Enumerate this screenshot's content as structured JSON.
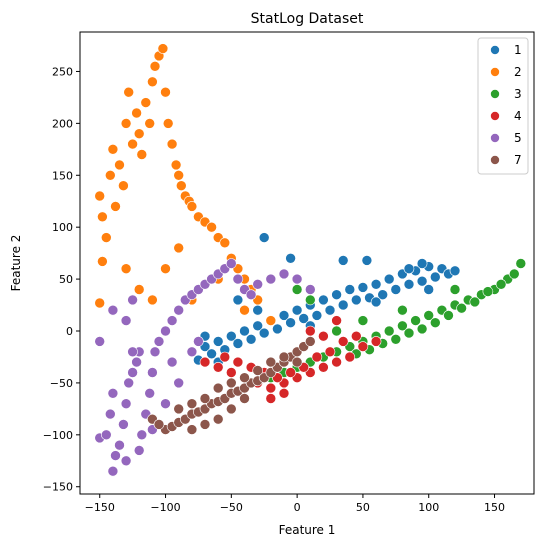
{
  "chart_data": {
    "type": "scatter",
    "title": "StatLog Dataset",
    "xlabel": "Feature 1",
    "ylabel": "Feature 2",
    "xlim": [
      -165,
      180
    ],
    "ylim": [
      -157,
      288
    ],
    "xticks": [
      -150,
      -100,
      -50,
      0,
      50,
      100,
      150
    ],
    "yticks": [
      -150,
      -100,
      -50,
      0,
      50,
      100,
      150,
      200,
      250
    ],
    "grid": false,
    "legend_position": "top-right",
    "series": [
      {
        "name": "1",
        "color": "#1f77b4",
        "points": [
          [
            -80,
            -20
          ],
          [
            -75,
            -28
          ],
          [
            -70,
            -15
          ],
          [
            -65,
            -22
          ],
          [
            -60,
            -10
          ],
          [
            -55,
            -18
          ],
          [
            -50,
            -5
          ],
          [
            -45,
            -12
          ],
          [
            -40,
            0
          ],
          [
            -35,
            -8
          ],
          [
            -30,
            5
          ],
          [
            -25,
            -2
          ],
          [
            -20,
            10
          ],
          [
            -15,
            2
          ],
          [
            -10,
            15
          ],
          [
            -5,
            8
          ],
          [
            0,
            20
          ],
          [
            5,
            12
          ],
          [
            10,
            25
          ],
          [
            15,
            15
          ],
          [
            20,
            30
          ],
          [
            25,
            20
          ],
          [
            30,
            35
          ],
          [
            35,
            25
          ],
          [
            40,
            40
          ],
          [
            45,
            30
          ],
          [
            50,
            42
          ],
          [
            55,
            32
          ],
          [
            60,
            45
          ],
          [
            65,
            35
          ],
          [
            70,
            50
          ],
          [
            75,
            40
          ],
          [
            80,
            55
          ],
          [
            85,
            45
          ],
          [
            90,
            58
          ],
          [
            95,
            48
          ],
          [
            100,
            62
          ],
          [
            105,
            52
          ],
          [
            110,
            60
          ],
          [
            115,
            55
          ],
          [
            120,
            58
          ],
          [
            85,
            60
          ],
          [
            95,
            65
          ],
          [
            -25,
            90
          ],
          [
            -5,
            70
          ],
          [
            35,
            68
          ],
          [
            53,
            68
          ],
          [
            -45,
            30
          ],
          [
            -30,
            20
          ],
          [
            10,
            5
          ],
          [
            -60,
            -30
          ],
          [
            -70,
            -5
          ],
          [
            60,
            28
          ],
          [
            100,
            40
          ]
        ]
      },
      {
        "name": "2",
        "color": "#ff7f0e",
        "points": [
          [
            -150,
            130
          ],
          [
            -148,
            110
          ],
          [
            -145,
            90
          ],
          [
            -142,
            150
          ],
          [
            -140,
            175
          ],
          [
            -138,
            120
          ],
          [
            -135,
            160
          ],
          [
            -132,
            140
          ],
          [
            -130,
            200
          ],
          [
            -128,
            230
          ],
          [
            -125,
            180
          ],
          [
            -122,
            210
          ],
          [
            -120,
            190
          ],
          [
            -118,
            170
          ],
          [
            -115,
            220
          ],
          [
            -112,
            200
          ],
          [
            -110,
            240
          ],
          [
            -108,
            255
          ],
          [
            -105,
            265
          ],
          [
            -102,
            272
          ],
          [
            -100,
            230
          ],
          [
            -98,
            200
          ],
          [
            -95,
            180
          ],
          [
            -92,
            160
          ],
          [
            -90,
            150
          ],
          [
            -88,
            140
          ],
          [
            -85,
            130
          ],
          [
            -82,
            125
          ],
          [
            -80,
            120
          ],
          [
            -75,
            110
          ],
          [
            -70,
            105
          ],
          [
            -65,
            100
          ],
          [
            -60,
            90
          ],
          [
            -55,
            85
          ],
          [
            -50,
            70
          ],
          [
            -45,
            60
          ],
          [
            -40,
            50
          ],
          [
            -35,
            40
          ],
          [
            -30,
            30
          ],
          [
            -150,
            27
          ],
          [
            -148,
            67
          ],
          [
            -130,
            60
          ],
          [
            -120,
            40
          ],
          [
            -110,
            30
          ],
          [
            -100,
            60
          ],
          [
            -90,
            80
          ],
          [
            -80,
            30
          ],
          [
            -60,
            50
          ],
          [
            -40,
            20
          ],
          [
            -20,
            10
          ]
        ]
      },
      {
        "name": "3",
        "color": "#2ca02c",
        "points": [
          [
            -40,
            -55
          ],
          [
            -30,
            -50
          ],
          [
            -20,
            -45
          ],
          [
            -10,
            -40
          ],
          [
            0,
            -35
          ],
          [
            10,
            -30
          ],
          [
            20,
            -25
          ],
          [
            30,
            -20
          ],
          [
            40,
            -15
          ],
          [
            50,
            -10
          ],
          [
            60,
            -5
          ],
          [
            70,
            0
          ],
          [
            80,
            5
          ],
          [
            90,
            10
          ],
          [
            100,
            15
          ],
          [
            110,
            20
          ],
          [
            120,
            25
          ],
          [
            130,
            30
          ],
          [
            140,
            35
          ],
          [
            150,
            40
          ],
          [
            160,
            50
          ],
          [
            170,
            65
          ],
          [
            165,
            55
          ],
          [
            155,
            45
          ],
          [
            145,
            38
          ],
          [
            135,
            28
          ],
          [
            125,
            22
          ],
          [
            115,
            15
          ],
          [
            105,
            8
          ],
          [
            95,
            2
          ],
          [
            85,
            -2
          ],
          [
            75,
            -8
          ],
          [
            65,
            -12
          ],
          [
            55,
            -18
          ],
          [
            45,
            -22
          ],
          [
            0,
            40
          ],
          [
            10,
            30
          ],
          [
            30,
            0
          ],
          [
            50,
            10
          ],
          [
            80,
            20
          ],
          [
            120,
            40
          ]
        ]
      },
      {
        "name": "4",
        "color": "#d62728",
        "points": [
          [
            -60,
            -35
          ],
          [
            -50,
            -40
          ],
          [
            -40,
            -45
          ],
          [
            -30,
            -50
          ],
          [
            -20,
            -55
          ],
          [
            -10,
            -50
          ],
          [
            0,
            -45
          ],
          [
            10,
            -40
          ],
          [
            20,
            -35
          ],
          [
            30,
            -30
          ],
          [
            40,
            -25
          ],
          [
            50,
            -15
          ],
          [
            60,
            -10
          ],
          [
            -70,
            -30
          ],
          [
            -55,
            -25
          ],
          [
            -45,
            -30
          ],
          [
            -35,
            -35
          ],
          [
            -25,
            -40
          ],
          [
            -15,
            -45
          ],
          [
            -5,
            -40
          ],
          [
            5,
            -35
          ],
          [
            15,
            -25
          ],
          [
            25,
            -20
          ],
          [
            35,
            -10
          ],
          [
            45,
            -5
          ],
          [
            20,
            -5
          ],
          [
            10,
            0
          ],
          [
            -10,
            -60
          ],
          [
            -20,
            -65
          ],
          [
            30,
            10
          ]
        ]
      },
      {
        "name": "5",
        "color": "#9467bd",
        "points": [
          [
            -150,
            -103
          ],
          [
            -145,
            -100
          ],
          [
            -142,
            -80
          ],
          [
            -140,
            -60
          ],
          [
            -138,
            -120
          ],
          [
            -135,
            -110
          ],
          [
            -132,
            -90
          ],
          [
            -130,
            -70
          ],
          [
            -128,
            -50
          ],
          [
            -125,
            -40
          ],
          [
            -122,
            -30
          ],
          [
            -120,
            -20
          ],
          [
            -118,
            -100
          ],
          [
            -115,
            -80
          ],
          [
            -112,
            -60
          ],
          [
            -110,
            -40
          ],
          [
            -108,
            -20
          ],
          [
            -105,
            -10
          ],
          [
            -100,
            0
          ],
          [
            -95,
            10
          ],
          [
            -90,
            20
          ],
          [
            -85,
            30
          ],
          [
            -80,
            35
          ],
          [
            -75,
            40
          ],
          [
            -70,
            45
          ],
          [
            -65,
            50
          ],
          [
            -60,
            55
          ],
          [
            -55,
            60
          ],
          [
            -50,
            65
          ],
          [
            -45,
            50
          ],
          [
            -40,
            40
          ],
          [
            -35,
            35
          ],
          [
            -30,
            45
          ],
          [
            -20,
            50
          ],
          [
            -10,
            55
          ],
          [
            0,
            50
          ],
          [
            10,
            40
          ],
          [
            -140,
            -135
          ],
          [
            -130,
            -125
          ],
          [
            -120,
            -115
          ],
          [
            -110,
            -95
          ],
          [
            -100,
            -70
          ],
          [
            -125,
            -20
          ],
          [
            -95,
            -30
          ],
          [
            -90,
            -50
          ],
          [
            -80,
            -20
          ],
          [
            -75,
            -10
          ],
          [
            -150,
            -10
          ],
          [
            -140,
            20
          ],
          [
            -130,
            10
          ],
          [
            -125,
            30
          ]
        ]
      },
      {
        "name": "7",
        "color": "#8c564b",
        "points": [
          [
            -100,
            -95
          ],
          [
            -95,
            -92
          ],
          [
            -90,
            -88
          ],
          [
            -85,
            -85
          ],
          [
            -80,
            -80
          ],
          [
            -75,
            -78
          ],
          [
            -70,
            -75
          ],
          [
            -65,
            -70
          ],
          [
            -60,
            -68
          ],
          [
            -55,
            -65
          ],
          [
            -50,
            -60
          ],
          [
            -45,
            -58
          ],
          [
            -40,
            -55
          ],
          [
            -35,
            -50
          ],
          [
            -30,
            -48
          ],
          [
            -25,
            -45
          ],
          [
            -20,
            -40
          ],
          [
            -15,
            -35
          ],
          [
            -10,
            -30
          ],
          [
            -5,
            -25
          ],
          [
            0,
            -20
          ],
          [
            5,
            -15
          ],
          [
            10,
            -10
          ],
          [
            -110,
            -85
          ],
          [
            -105,
            -90
          ],
          [
            -90,
            -75
          ],
          [
            -80,
            -70
          ],
          [
            -70,
            -65
          ],
          [
            -60,
            -55
          ],
          [
            -50,
            -50
          ],
          [
            -40,
            -45
          ],
          [
            -30,
            -38
          ],
          [
            -20,
            -30
          ],
          [
            -10,
            -25
          ],
          [
            -60,
            -85
          ],
          [
            -50,
            -75
          ],
          [
            -40,
            -65
          ],
          [
            -80,
            -95
          ],
          [
            -70,
            -90
          ],
          [
            0,
            -30
          ]
        ]
      }
    ]
  }
}
